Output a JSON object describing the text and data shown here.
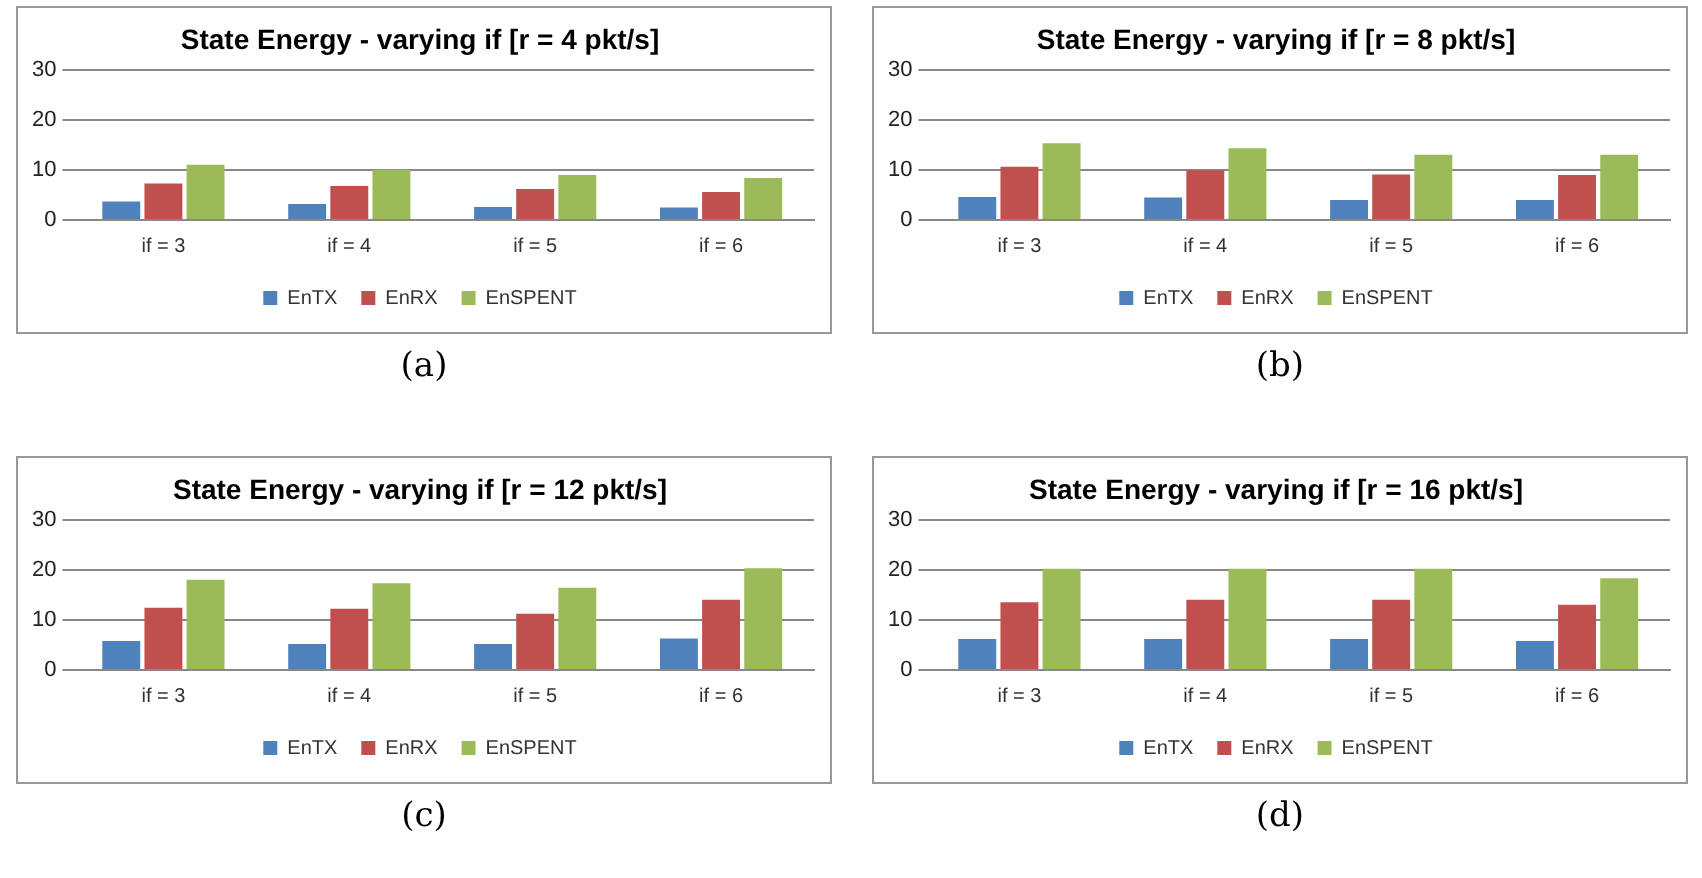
{
  "chart_data": [
    {
      "type": "bar",
      "title": "State Energy - varying if [r = 4 pkt/s]",
      "categories": [
        "if = 3",
        "if = 4",
        "if = 5",
        "if = 6"
      ],
      "series": [
        {
          "name": "EnTX",
          "color": "#4f81bd",
          "values": [
            3.7,
            3.2,
            2.6,
            2.5
          ]
        },
        {
          "name": "EnRX",
          "color": "#c0504d",
          "values": [
            7.3,
            6.8,
            6.2,
            5.6
          ]
        },
        {
          "name": "EnSPENT",
          "color": "#9bbb59",
          "values": [
            11,
            10,
            9,
            8.4
          ]
        }
      ],
      "ylim": [
        0,
        30
      ],
      "yticks": [
        0,
        10,
        20,
        30
      ],
      "grid": "y",
      "legend": "bottom",
      "annotations": [
        "(a)"
      ]
    },
    {
      "type": "bar",
      "title": "State Energy - varying if [r = 8 pkt/s]",
      "categories": [
        "if = 3",
        "if = 4",
        "if = 5",
        "if = 6"
      ],
      "series": [
        {
          "name": "EnTX",
          "color": "#4f81bd",
          "values": [
            4.6,
            4.5,
            4,
            4
          ]
        },
        {
          "name": "EnRX",
          "color": "#c0504d",
          "values": [
            10.6,
            9.9,
            9.1,
            9
          ]
        },
        {
          "name": "EnSPENT",
          "color": "#9bbb59",
          "values": [
            15.3,
            14.3,
            13,
            13
          ]
        }
      ],
      "ylim": [
        0,
        30
      ],
      "yticks": [
        0,
        10,
        20,
        30
      ],
      "grid": "y",
      "legend": "bottom",
      "annotations": [
        "(b)"
      ]
    },
    {
      "type": "bar",
      "title": "State Energy - varying if [r = 12 pkt/s]",
      "categories": [
        "if = 3",
        "if = 4",
        "if = 5",
        "if = 6"
      ],
      "series": [
        {
          "name": "EnTX",
          "color": "#4f81bd",
          "values": [
            5.8,
            5.2,
            5.2,
            6.3
          ]
        },
        {
          "name": "EnRX",
          "color": "#c0504d",
          "values": [
            12.4,
            12.2,
            11.2,
            14
          ]
        },
        {
          "name": "EnSPENT",
          "color": "#9bbb59",
          "values": [
            18,
            17.3,
            16.4,
            20.3
          ]
        }
      ],
      "ylim": [
        0,
        30
      ],
      "yticks": [
        0,
        10,
        20,
        30
      ],
      "grid": "y",
      "legend": "bottom",
      "annotations": [
        "(c)"
      ]
    },
    {
      "type": "bar",
      "title": "State Energy - varying if [r = 16 pkt/s]",
      "categories": [
        "if = 3",
        "if = 4",
        "if = 5",
        "if = 6"
      ],
      "series": [
        {
          "name": "EnTX",
          "color": "#4f81bd",
          "values": [
            6.2,
            6.2,
            6.2,
            5.8
          ]
        },
        {
          "name": "EnRX",
          "color": "#c0504d",
          "values": [
            13.5,
            14,
            14,
            13
          ]
        },
        {
          "name": "EnSPENT",
          "color": "#9bbb59",
          "values": [
            20.2,
            20.2,
            20.2,
            18.3
          ]
        }
      ],
      "ylim": [
        0,
        30
      ],
      "yticks": [
        0,
        10,
        20,
        30
      ],
      "grid": "y",
      "legend": "bottom",
      "annotations": [
        "(d)"
      ]
    }
  ]
}
